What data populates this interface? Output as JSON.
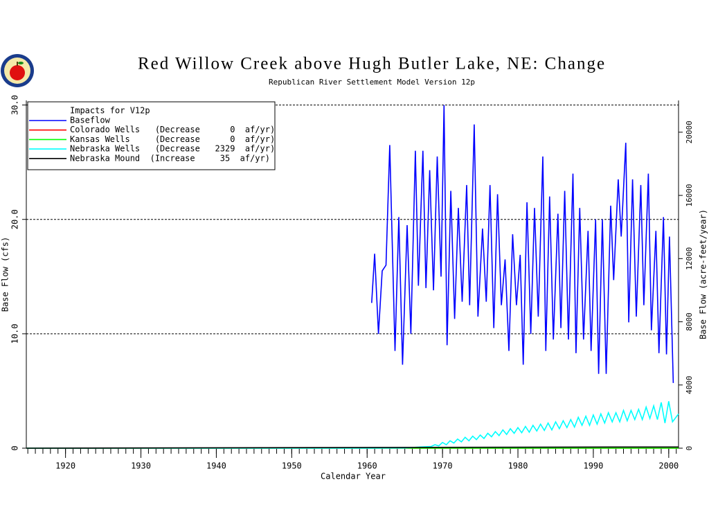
{
  "chart_data": {
    "type": "line",
    "title": "Red Willow Creek above Hugh Butler Lake, NE: Change",
    "subtitle": "Republican River Settlement Model Version 12p",
    "xlabel": "Calendar Year",
    "ylabel": "Base Flow (cfs)",
    "y2label": "Base Flow (acre-feet/year)",
    "legend_title": "Impacts for V12p",
    "legend": "upper left",
    "grid": true,
    "xlim": [
      1914.8,
      2001.3
    ],
    "xticks": [
      1920,
      1930,
      1940,
      1950,
      1960,
      1970,
      1980,
      1990,
      2000
    ],
    "xminorticks": [
      1915,
      1916,
      1917,
      1918,
      1919,
      1920,
      1921,
      1922,
      1923,
      1924,
      1925,
      1926,
      1927,
      1928,
      1929,
      1930,
      1931,
      1932,
      1933,
      1934,
      1935,
      1936,
      1937,
      1938,
      1939,
      1940,
      1941,
      1942,
      1943,
      1944,
      1945,
      1946,
      1947,
      1948,
      1949,
      1950,
      1951,
      1952,
      1953,
      1954,
      1955,
      1956,
      1957,
      1958,
      1959,
      1960,
      1961,
      1962,
      1963,
      1964,
      1965,
      1966,
      1967,
      1968,
      1969,
      1970,
      1971,
      1972,
      1973,
      1974,
      1975,
      1976,
      1977,
      1978,
      1979,
      1980,
      1981,
      1982,
      1983,
      1984,
      1985,
      1986,
      1987,
      1988,
      1989,
      1990,
      1991,
      1992,
      1993,
      1994,
      1995,
      1996,
      1997,
      1998,
      1999,
      2000,
      2001
    ],
    "ylim": [
      0,
      30.4
    ],
    "yticks": [
      0,
      {
        "value": 10,
        "label": "10.0"
      },
      {
        "value": 20,
        "label": "20.0"
      },
      {
        "value": 30,
        "label": "30.0"
      }
    ],
    "y2lim": [
      0,
      22010
    ],
    "y2ticks": [
      0,
      4000,
      8000,
      12000,
      16000,
      20000
    ],
    "series": [
      {
        "name": "Baseflow",
        "color": "#0000ff",
        "x": [
          1960.6,
          1961.0,
          1961.5,
          1962.0,
          1962.5,
          1963.0,
          1963.7,
          1964.2,
          1964.7,
          1965.3,
          1965.8,
          1966.4,
          1966.8,
          1967.4,
          1967.8,
          1968.3,
          1968.8,
          1969.3,
          1969.8,
          1970.2,
          1970.6,
          1971.1,
          1971.6,
          1972.1,
          1972.6,
          1973.2,
          1973.6,
          1974.2,
          1974.7,
          1975.3,
          1975.8,
          1976.3,
          1976.8,
          1977.3,
          1977.8,
          1978.3,
          1978.8,
          1979.3,
          1979.8,
          1980.3,
          1980.7,
          1981.2,
          1981.7,
          1982.2,
          1982.7,
          1983.3,
          1983.7,
          1984.2,
          1984.7,
          1985.3,
          1985.7,
          1986.2,
          1986.7,
          1987.3,
          1987.7,
          1988.2,
          1988.7,
          1989.3,
          1989.7,
          1990.3,
          1990.7,
          1991.2,
          1991.7,
          1992.3,
          1992.7,
          1993.3,
          1993.7,
          1994.3,
          1994.7,
          1995.2,
          1995.7,
          1996.3,
          1996.7,
          1997.3,
          1997.7,
          1998.3,
          1998.7,
          1999.3,
          1999.7,
          2000.1,
          2000.6
        ],
        "values": [
          12.7,
          17,
          10,
          15.5,
          16,
          26.5,
          8.5,
          20.2,
          7.3,
          19.5,
          10,
          26,
          14.2,
          26,
          14,
          24.3,
          13.8,
          25.5,
          15,
          30,
          9,
          22.5,
          11.3,
          21,
          12.8,
          23,
          12.5,
          28.3,
          11.5,
          19.2,
          12.8,
          23,
          10.5,
          22.2,
          12.5,
          16.5,
          8.5,
          18.7,
          12.5,
          16.9,
          7.3,
          21.5,
          10,
          21,
          11.5,
          25.5,
          8.5,
          22,
          9.5,
          20.5,
          10.5,
          22.5,
          9.5,
          24,
          8.3,
          21,
          9.5,
          19,
          8.5,
          20,
          6.5,
          20,
          6.5,
          21.2,
          14.7,
          23.5,
          18.5,
          26.7,
          11,
          23.5,
          11.5,
          23,
          12.5,
          24,
          10.3,
          19,
          8.3,
          20.2,
          8.2,
          18.5,
          5.7
        ]
      },
      {
        "name": "Colorado Wells   (Decrease      0  af/yr)",
        "color": "#ff0000",
        "x": [
          1914.8,
          2001.3
        ],
        "values": [
          0,
          0
        ]
      },
      {
        "name": "Kansas Wells     (Decrease      0  af/yr)",
        "color": "#00ff00",
        "x": [
          1914.8,
          2001.3
        ],
        "values": [
          0,
          0
        ]
      },
      {
        "name": "Nebraska Wells   (Decrease   2329  af/yr)",
        "color": "#00ffff",
        "x": [
          1914.8,
          1960,
          1965,
          1967,
          1968.5,
          1969,
          1969.5,
          1970,
          1970.5,
          1971,
          1971.5,
          1972,
          1972.5,
          1973,
          1973.5,
          1974,
          1974.5,
          1975,
          1975.5,
          1976,
          1976.5,
          1977,
          1977.5,
          1978,
          1978.5,
          1979,
          1979.5,
          1980,
          1980.5,
          1981,
          1981.5,
          1982,
          1982.5,
          1983,
          1983.5,
          1984,
          1984.5,
          1985,
          1985.5,
          1986,
          1986.5,
          1987,
          1987.5,
          1988,
          1988.5,
          1989,
          1989.5,
          1990,
          1990.5,
          1991,
          1991.5,
          1992,
          1992.5,
          1993,
          1993.5,
          1994,
          1994.5,
          1995,
          1995.5,
          1996,
          1996.5,
          1997,
          1997.5,
          1998,
          1998.5,
          1999,
          1999.5,
          2000,
          2000.5,
          2001.3
        ],
        "values": [
          0,
          0,
          0.02,
          0.1,
          0.15,
          0.3,
          0.2,
          0.5,
          0.3,
          0.65,
          0.45,
          0.8,
          0.55,
          0.95,
          0.65,
          1.05,
          0.75,
          1.15,
          0.85,
          1.3,
          1.0,
          1.45,
          1.1,
          1.6,
          1.2,
          1.7,
          1.3,
          1.8,
          1.35,
          1.9,
          1.4,
          2.0,
          1.5,
          2.1,
          1.55,
          2.2,
          1.6,
          2.3,
          1.7,
          2.4,
          1.8,
          2.5,
          1.85,
          2.7,
          2.0,
          2.8,
          2.0,
          2.9,
          2.1,
          3.0,
          2.2,
          3.1,
          2.3,
          3.1,
          2.3,
          3.3,
          2.4,
          3.3,
          2.5,
          3.4,
          2.5,
          3.6,
          2.6,
          3.7,
          2.5,
          4.0,
          2.2,
          4.1,
          2.3,
          3.0
        ]
      },
      {
        "name": "Nebraska Mound  (Increase     35  af/yr)",
        "color": "#000000",
        "x": [
          1914.8,
          1993,
          2001.3
        ],
        "values": [
          0,
          0.1,
          0.1
        ]
      }
    ]
  }
}
